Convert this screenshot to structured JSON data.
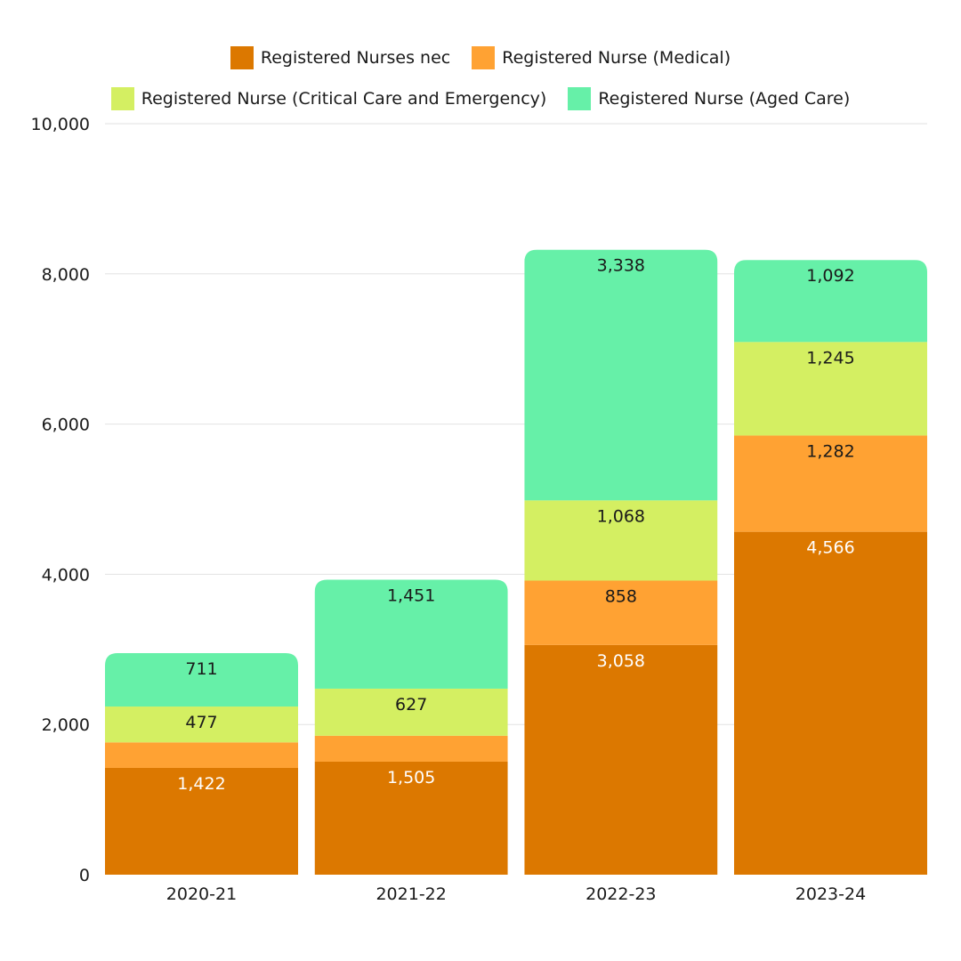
{
  "chart_data": {
    "type": "bar",
    "stacked": true,
    "categories": [
      "2020-21",
      "2021-22",
      "2022-23",
      "2023-24"
    ],
    "series": [
      {
        "name": "Registered Nurses nec",
        "color": "#dc7800",
        "label_color": "#ffffff",
        "values": [
          1422,
          1505,
          3058,
          4566
        ],
        "labels": [
          "1,422",
          "1,505",
          "3,058",
          "4,566"
        ]
      },
      {
        "name": "Registered Nurse (Medical)",
        "color": "#ffa233",
        "label_color": "#1a1a1a",
        "values": [
          340,
          345,
          858,
          1282
        ],
        "labels": [
          "",
          "",
          "858",
          "1,282"
        ]
      },
      {
        "name": "Registered Nurse (Critical Care and Emergency)",
        "color": "#d4ef62",
        "label_color": "#1a1a1a",
        "values": [
          477,
          627,
          1068,
          1245
        ],
        "labels": [
          "477",
          "627",
          "1,068",
          "1,245"
        ]
      },
      {
        "name": "Registered Nurse (Aged Care)",
        "color": "#66f0a8",
        "label_color": "#1a1a1a",
        "values": [
          711,
          1451,
          3338,
          1092
        ],
        "labels": [
          "711",
          "1,451",
          "3,338",
          "1,092"
        ]
      }
    ],
    "ylim": [
      0,
      10000
    ],
    "yticks": [
      0,
      2000,
      4000,
      6000,
      8000,
      10000
    ],
    "ytick_labels": [
      "0",
      "2,000",
      "4,000",
      "6,000",
      "8,000",
      "10,000"
    ],
    "grid": true,
    "legend_position": "top",
    "xlabel": "",
    "ylabel": ""
  }
}
